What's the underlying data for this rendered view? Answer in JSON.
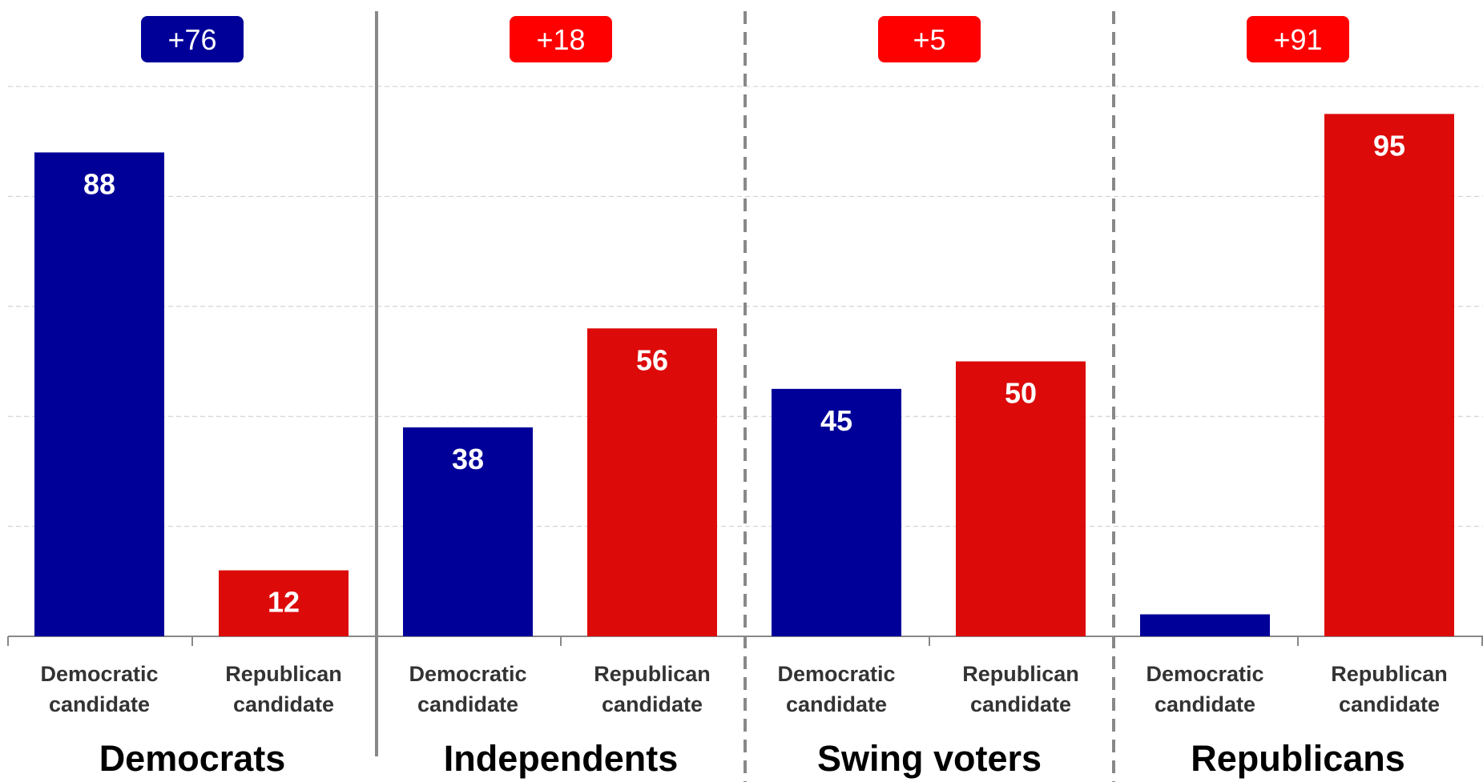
{
  "chart_data": {
    "type": "bar",
    "ylim": [
      0,
      100
    ],
    "grid": true,
    "groups": [
      {
        "name": "Democrats",
        "margin_label": "+76",
        "margin_party": "Democratic",
        "bars": [
          {
            "category_line1": "Democratic",
            "category_line2": "candidate",
            "party": "Democratic",
            "value": 88,
            "value_label": "88"
          },
          {
            "category_line1": "Republican",
            "category_line2": "candidate",
            "party": "Republican",
            "value": 12,
            "value_label": "12"
          }
        ]
      },
      {
        "name": "Independents",
        "margin_label": "+18",
        "margin_party": "Republican",
        "bars": [
          {
            "category_line1": "Democratic",
            "category_line2": "candidate",
            "party": "Democratic",
            "value": 38,
            "value_label": "38"
          },
          {
            "category_line1": "Republican",
            "category_line2": "candidate",
            "party": "Republican",
            "value": 56,
            "value_label": "56"
          }
        ]
      },
      {
        "name": "Swing voters",
        "margin_label": "+5",
        "margin_party": "Republican",
        "bars": [
          {
            "category_line1": "Democratic",
            "category_line2": "candidate",
            "party": "Democratic",
            "value": 45,
            "value_label": "45"
          },
          {
            "category_line1": "Republican",
            "category_line2": "candidate",
            "party": "Republican",
            "value": 50,
            "value_label": "50"
          }
        ]
      },
      {
        "name": "Republicans",
        "margin_label": "+91",
        "margin_party": "Republican",
        "bars": [
          {
            "category_line1": "Democratic",
            "category_line2": "candidate",
            "party": "Democratic",
            "value": 4,
            "value_label": ""
          },
          {
            "category_line1": "Republican",
            "category_line2": "candidate",
            "party": "Republican",
            "value": 95,
            "value_label": "95"
          }
        ]
      }
    ]
  },
  "colors": {
    "Democratic": "#000099",
    "Republican": "#dd0a0a",
    "Republican_badge": "#ff0000",
    "grid": "#cccccc",
    "axis": "#888888",
    "separator": "#888888"
  }
}
